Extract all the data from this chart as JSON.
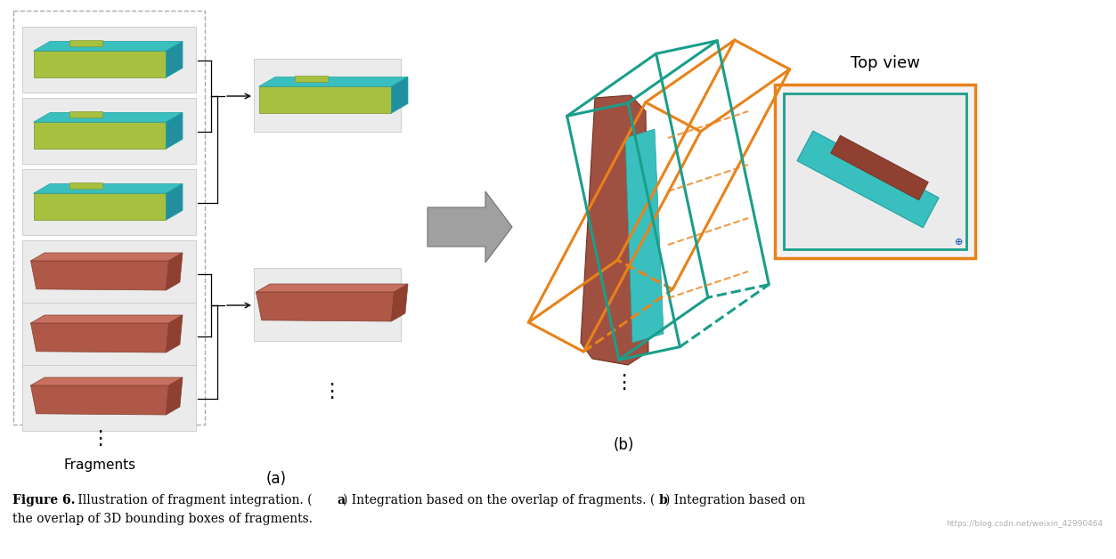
{
  "figure_width": 12.53,
  "figure_height": 6.28,
  "bg_color": "#ffffff",
  "watermark": "https://blog.csdn.net/weixin_42990464",
  "label_a": "(a)",
  "label_b": "(b)",
  "fragments_label": "Fragments",
  "top_view_label": "Top view",
  "orange_color": "#E8821A",
  "teal_color": "#1A9E8A",
  "arrow_gray": "#909090",
  "brown_color": "#A0503A",
  "teal_frag_color": "#3ABFBF",
  "yellow_green_color": "#A8C040",
  "caption_fontsize": 10,
  "label_fontsize": 12
}
